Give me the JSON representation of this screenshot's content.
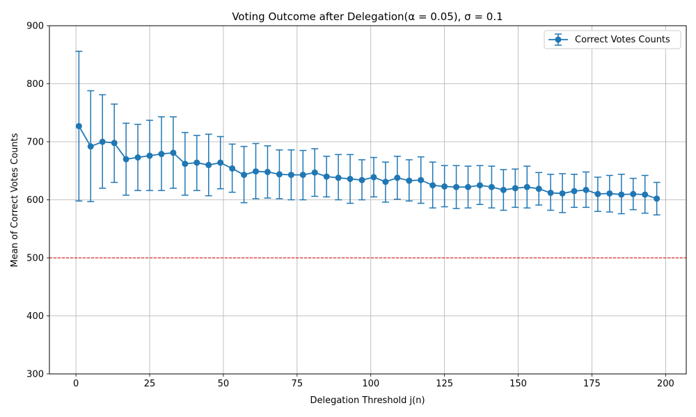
{
  "chart_data": {
    "type": "line",
    "title": "Voting Outcome after Delegation(α = 0.05), σ = 0.1",
    "xlabel": "Delegation Threshold j(n)",
    "ylabel": "Mean of Correct Votes Counts",
    "xlim": [
      -9,
      207
    ],
    "ylim": [
      300,
      900
    ],
    "xticks": [
      0,
      25,
      50,
      75,
      100,
      125,
      150,
      175,
      200
    ],
    "yticks": [
      300,
      400,
      500,
      600,
      700,
      800,
      900
    ],
    "grid": true,
    "legend": {
      "position": "top-right",
      "entries": [
        "Correct Votes Counts"
      ]
    },
    "reference_line": {
      "y": 500,
      "color": "#d62728",
      "style": "dashed"
    },
    "series": [
      {
        "name": "Correct Votes Counts",
        "color": "#1f77b4",
        "x": [
          1,
          5,
          9,
          13,
          17,
          21,
          25,
          29,
          33,
          37,
          41,
          45,
          49,
          53,
          57,
          61,
          65,
          69,
          73,
          77,
          81,
          85,
          89,
          93,
          97,
          101,
          105,
          109,
          113,
          117,
          121,
          125,
          129,
          133,
          137,
          141,
          145,
          149,
          153,
          157,
          161,
          165,
          169,
          173,
          177,
          181,
          185,
          189,
          193,
          197
        ],
        "y": [
          727,
          692,
          700,
          698,
          670,
          673,
          676,
          679,
          681,
          662,
          664,
          660,
          664,
          654,
          643,
          649,
          648,
          644,
          643,
          643,
          647,
          640,
          638,
          636,
          634,
          639,
          631,
          638,
          633,
          634,
          625,
          623,
          622,
          622,
          625,
          622,
          617,
          620,
          622,
          619,
          612,
          611,
          615,
          617,
          610,
          611,
          609,
          610,
          609,
          602
        ],
        "err_low": [
          598,
          597,
          620,
          630,
          608,
          616,
          616,
          616,
          620,
          608,
          616,
          607,
          619,
          613,
          595,
          602,
          603,
          602,
          600,
          600,
          606,
          605,
          600,
          594,
          600,
          605,
          596,
          601,
          598,
          594,
          586,
          588,
          585,
          586,
          592,
          586,
          582,
          587,
          586,
          591,
          582,
          578,
          587,
          587,
          580,
          579,
          576,
          583,
          577,
          574
        ],
        "err_high": [
          856,
          788,
          781,
          765,
          732,
          730,
          737,
          743,
          743,
          716,
          711,
          713,
          709,
          696,
          692,
          697,
          693,
          686,
          686,
          685,
          688,
          675,
          678,
          678,
          669,
          673,
          665,
          675,
          669,
          674,
          665,
          659,
          659,
          658,
          659,
          658,
          652,
          653,
          658,
          647,
          644,
          645,
          644,
          648,
          639,
          642,
          644,
          637,
          642,
          630
        ]
      }
    ]
  }
}
